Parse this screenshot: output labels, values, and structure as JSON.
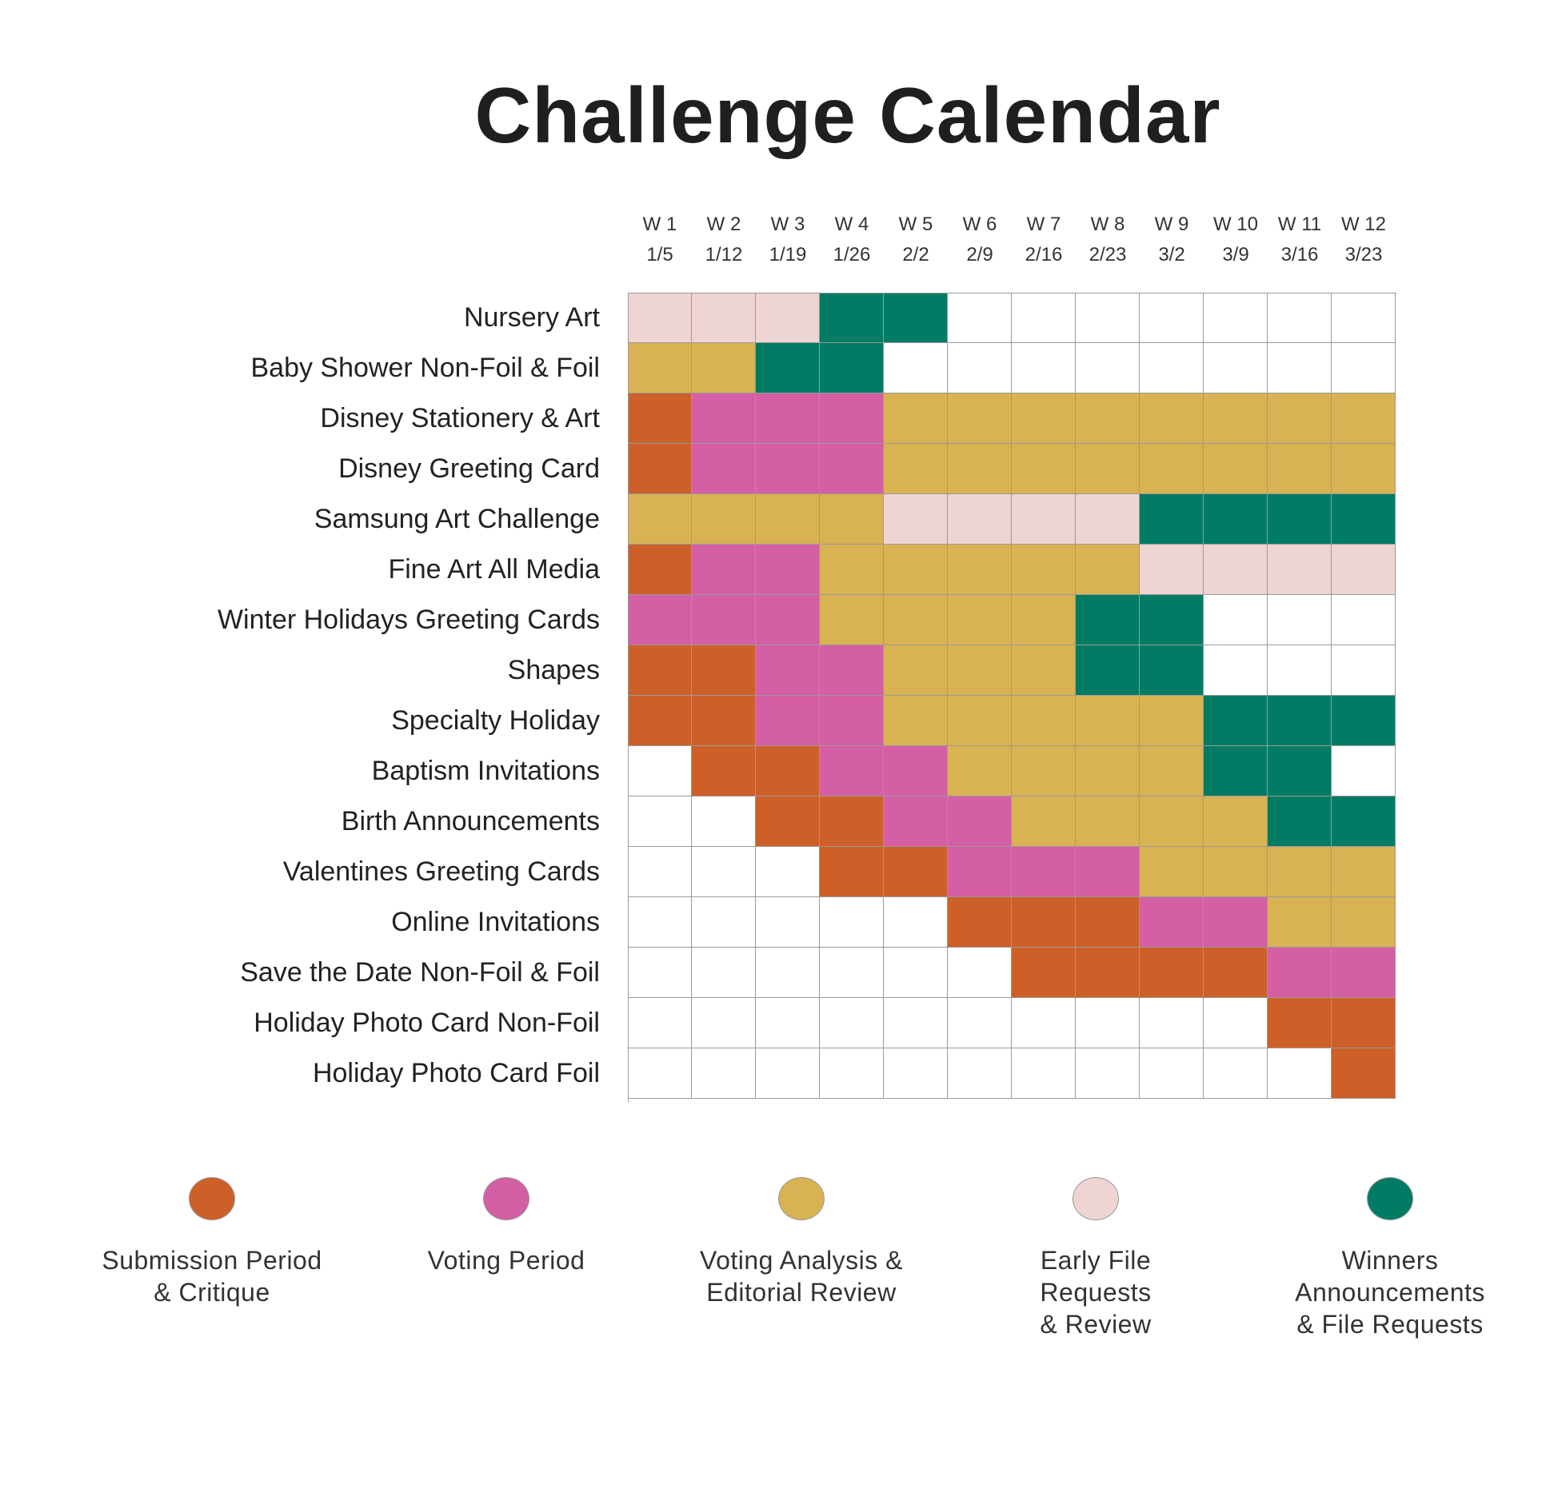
{
  "chart_data": {
    "type": "heatmap",
    "title": "Challenge Calendar",
    "columns": [
      {
        "week": "W 1",
        "date": "1/5"
      },
      {
        "week": "W 2",
        "date": "1/12"
      },
      {
        "week": "W 3",
        "date": "1/19"
      },
      {
        "week": "W 4",
        "date": "1/26"
      },
      {
        "week": "W 5",
        "date": "2/2"
      },
      {
        "week": "W 6",
        "date": "2/9"
      },
      {
        "week": "W 7",
        "date": "2/16"
      },
      {
        "week": "W 8",
        "date": "2/23"
      },
      {
        "week": "W 9",
        "date": "3/2"
      },
      {
        "week": "W 10",
        "date": "3/9"
      },
      {
        "week": "W 11",
        "date": "3/16"
      },
      {
        "week": "W 12",
        "date": "3/23"
      }
    ],
    "legend": [
      {
        "key": "S",
        "label": "Submission Period\n& Critique",
        "color": "#cd5f28"
      },
      {
        "key": "V",
        "label": "Voting Period",
        "color": "#d55fa4"
      },
      {
        "key": "A",
        "label": "Voting Analysis &\nEditorial Review",
        "color": "#d8b253"
      },
      {
        "key": "E",
        "label": "Early File\nRequests\n& Review",
        "color": "#eed4d2"
      },
      {
        "key": "W",
        "label": "Winners\nAnnouncements\n& File Requests",
        "color": "#017b63"
      }
    ],
    "rows": [
      {
        "label": "Nursery Art",
        "cells": [
          "E",
          "E",
          "E",
          "W",
          "W",
          "",
          "",
          "",
          "",
          "",
          "",
          ""
        ]
      },
      {
        "label": "Baby Shower Non-Foil & Foil",
        "cells": [
          "A",
          "A",
          "W",
          "W",
          "",
          "",
          "",
          "",
          "",
          "",
          "",
          ""
        ]
      },
      {
        "label": "Disney Stationery & Art",
        "cells": [
          "S",
          "V",
          "V",
          "V",
          "A",
          "A",
          "A",
          "A",
          "A",
          "A",
          "A",
          "A"
        ]
      },
      {
        "label": "Disney Greeting Card",
        "cells": [
          "S",
          "V",
          "V",
          "V",
          "A",
          "A",
          "A",
          "A",
          "A",
          "A",
          "A",
          "A"
        ]
      },
      {
        "label": "Samsung Art Challenge",
        "cells": [
          "A",
          "A",
          "A",
          "A",
          "E",
          "E",
          "E",
          "E",
          "W",
          "W",
          "W",
          "W"
        ]
      },
      {
        "label": "Fine Art All Media",
        "cells": [
          "S",
          "V",
          "V",
          "A",
          "A",
          "A",
          "A",
          "A",
          "E",
          "E",
          "E",
          "E"
        ]
      },
      {
        "label": "Winter Holidays Greeting Cards",
        "cells": [
          "V",
          "V",
          "V",
          "A",
          "A",
          "A",
          "A",
          "W",
          "W",
          "",
          "",
          ""
        ]
      },
      {
        "label": "Shapes",
        "cells": [
          "S",
          "S",
          "V",
          "V",
          "A",
          "A",
          "A",
          "W",
          "W",
          "",
          "",
          ""
        ]
      },
      {
        "label": "Specialty Holiday",
        "cells": [
          "S",
          "S",
          "V",
          "V",
          "A",
          "A",
          "A",
          "A",
          "A",
          "W",
          "W",
          "W"
        ]
      },
      {
        "label": "Baptism Invitations",
        "cells": [
          "",
          "S",
          "S",
          "V",
          "V",
          "A",
          "A",
          "A",
          "A",
          "W",
          "W",
          ""
        ]
      },
      {
        "label": "Birth Announcements",
        "cells": [
          "",
          "",
          "S",
          "S",
          "V",
          "V",
          "A",
          "A",
          "A",
          "A",
          "W",
          "W"
        ]
      },
      {
        "label": "Valentines Greeting Cards",
        "cells": [
          "",
          "",
          "",
          "S",
          "S",
          "V",
          "V",
          "V",
          "A",
          "A",
          "A",
          "A"
        ]
      },
      {
        "label": "Online Invitations",
        "cells": [
          "",
          "",
          "",
          "",
          "",
          "S",
          "S",
          "S",
          "V",
          "V",
          "A",
          "A"
        ]
      },
      {
        "label": "Save the Date Non-Foil & Foil",
        "cells": [
          "",
          "",
          "",
          "",
          "",
          "",
          "S",
          "S",
          "S",
          "S",
          "V",
          "V"
        ]
      },
      {
        "label": "Holiday Photo Card Non-Foil",
        "cells": [
          "",
          "",
          "",
          "",
          "",
          "",
          "",
          "",
          "",
          "",
          "S",
          "S"
        ]
      },
      {
        "label": "Holiday Photo Card Foil",
        "cells": [
          "",
          "",
          "",
          "",
          "",
          "",
          "",
          "",
          "",
          "",
          "",
          "S"
        ]
      }
    ]
  }
}
